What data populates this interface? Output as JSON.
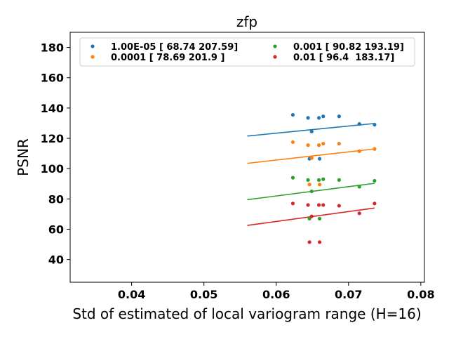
{
  "chart_data": {
    "type": "scatter",
    "title": "zfp",
    "xlabel": "Std of estimated of local variogram range (H=16)",
    "ylabel": "PSNR",
    "xlim": [
      0.0315,
      0.0805
    ],
    "ylim": [
      25,
      190
    ],
    "xticks": [
      0.04,
      0.05,
      0.06,
      0.07,
      0.08
    ],
    "xtick_labels": [
      "0.04",
      "0.05",
      "0.06",
      "0.07",
      "0.08"
    ],
    "yticks": [
      40,
      60,
      80,
      100,
      120,
      140,
      160,
      180
    ],
    "ytick_labels": [
      "40",
      "60",
      "80",
      "100",
      "120",
      "140",
      "160",
      "180"
    ],
    "grid": false,
    "legend_position": "top",
    "x": [
      0.0623,
      0.0644,
      0.0646,
      0.0649,
      0.0659,
      0.066,
      0.0665,
      0.0687,
      0.0715,
      0.0736
    ],
    "series": [
      {
        "name": "1.00E-05 [ 68.74 207.59]",
        "color": "#1f77b4",
        "values": [
          135.5,
          133.5,
          106.5,
          124.5,
          133.5,
          106.5,
          134.5,
          134.5,
          129.5,
          129.0
        ],
        "fit": {
          "x": [
            0.056,
            0.0736
          ],
          "y": [
            121.5,
            129.8
          ]
        }
      },
      {
        "name": "0.0001 [ 78.69 201.9 ]",
        "color": "#ff7f0e",
        "values": [
          117.5,
          115.5,
          89.5,
          107.0,
          115.5,
          89.5,
          116.5,
          116.5,
          111.5,
          113.0
        ],
        "fit": {
          "x": [
            0.056,
            0.0736
          ],
          "y": [
            103.5,
            113.0
          ]
        }
      },
      {
        "name": "0.001 [ 90.82 193.19]",
        "color": "#2ca02c",
        "values": [
          94.0,
          92.5,
          67.0,
          85.0,
          92.5,
          67.0,
          93.0,
          92.5,
          88.0,
          92.0
        ],
        "fit": {
          "x": [
            0.056,
            0.0736
          ],
          "y": [
            79.5,
            90.3
          ]
        }
      },
      {
        "name": "0.01 [ 96.4  183.17]",
        "color": "#d62728",
        "values": [
          77.0,
          76.0,
          51.5,
          68.5,
          76.0,
          51.5,
          76.0,
          75.5,
          70.5,
          77.0
        ],
        "fit": {
          "x": [
            0.056,
            0.0736
          ],
          "y": [
            62.5,
            74.0
          ]
        }
      }
    ]
  }
}
